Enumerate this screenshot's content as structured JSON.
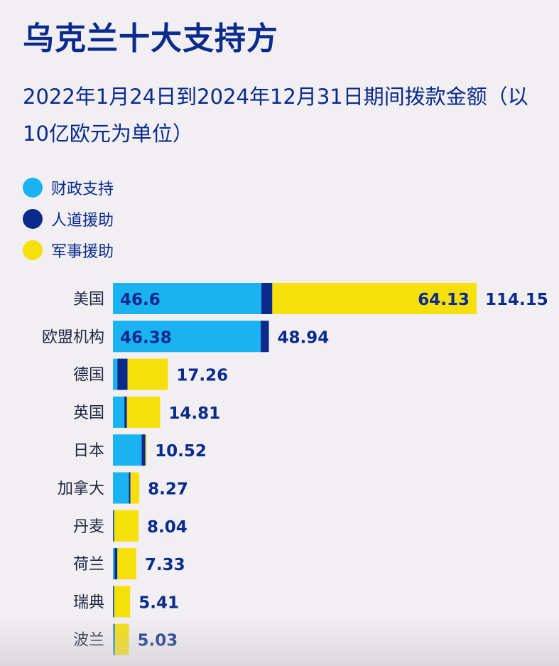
{
  "title": "乌克兰十大支持方",
  "subtitle": "2022年1月24日到2024年12月31日期间拨款金额（以10亿欧元为单位）",
  "colors": {
    "financial": "#1ab2f0",
    "humanitarian": "#0a2a8c",
    "military": "#f6df0a",
    "text": "#0a2a8c"
  },
  "legend": [
    {
      "label": "财政支持",
      "color": "#1ab2f0"
    },
    {
      "label": "人道援助",
      "color": "#0a2a8c"
    },
    {
      "label": "军事援助",
      "color": "#f6df0a"
    }
  ],
  "chart_data": {
    "type": "bar",
    "orientation": "horizontal",
    "stacked": true,
    "title": "乌克兰十大支持方",
    "subtitle": "2022年1月24日到2024年12月31日期间拨款金额（以10亿欧元为单位）",
    "categories": [
      "美国",
      "欧盟机构",
      "德国",
      "英国",
      "日本",
      "加拿大",
      "丹麦",
      "荷兰",
      "瑞典",
      "波兰"
    ],
    "totals": [
      114.15,
      48.94,
      17.26,
      14.81,
      10.52,
      8.27,
      8.04,
      7.33,
      5.41,
      5.03
    ],
    "series": [
      {
        "name": "财政支持",
        "color": "#1ab2f0",
        "values": [
          46.6,
          46.38,
          1.4,
          3.6,
          9.0,
          5.0,
          0.1,
          0.5,
          0.1,
          0.4
        ]
      },
      {
        "name": "人道援助",
        "color": "#0a2a8c",
        "values": [
          3.42,
          2.56,
          3.2,
          0.8,
          1.2,
          0.5,
          0.3,
          0.9,
          0.3,
          0.2
        ]
      },
      {
        "name": "军事援助",
        "color": "#f6df0a",
        "values": [
          64.13,
          0,
          12.66,
          10.41,
          0.32,
          2.77,
          7.64,
          5.93,
          5.01,
          4.43
        ]
      }
    ],
    "data_labels": [
      {
        "category": "美国",
        "series": "财政支持",
        "text": "46.6"
      },
      {
        "category": "美国",
        "series": "军事援助",
        "text": "64.13"
      },
      {
        "category": "欧盟机构",
        "series": "财政支持",
        "text": "46.38"
      }
    ],
    "xlim": [
      0,
      114.15
    ],
    "grid": false,
    "legend_position": "top-left"
  }
}
